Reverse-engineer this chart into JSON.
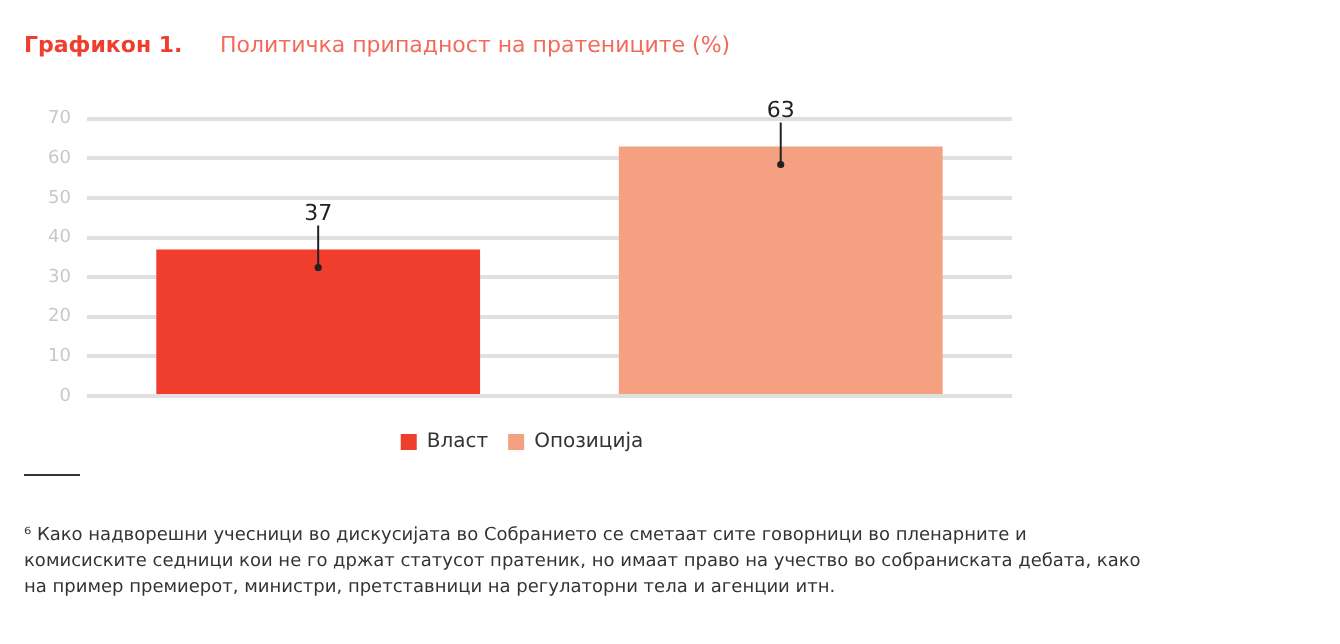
{
  "chart_data": {
    "type": "bar",
    "title": "Графикон 1.",
    "subtitle": "Политичка припадност на пратениците (%)",
    "categories": [
      null,
      null
    ],
    "series": [
      {
        "name": "Власт",
        "color": "#ef3e2e",
        "values": [
          37,
          null
        ]
      },
      {
        "name": "Опозиција",
        "color": "#f4a081",
        "values": [
          null,
          63
        ]
      }
    ],
    "ylim": [
      0,
      70
    ],
    "yticks": [
      0,
      10,
      20,
      30,
      40,
      50,
      60,
      70
    ],
    "grid": "y",
    "legend": "bottom",
    "data_labels": true,
    "annotations": [
      "⁶ Како надворешни учесници во дискусијата во Собранието се сметаат сите говорници во пленарните и комисиските седници кои не го држат статусот пратеник, но имаат право на учество во собраниската дебата, како на пример премиерот, министри, претставници на регулаторни тела и агенции итн."
    ]
  }
}
